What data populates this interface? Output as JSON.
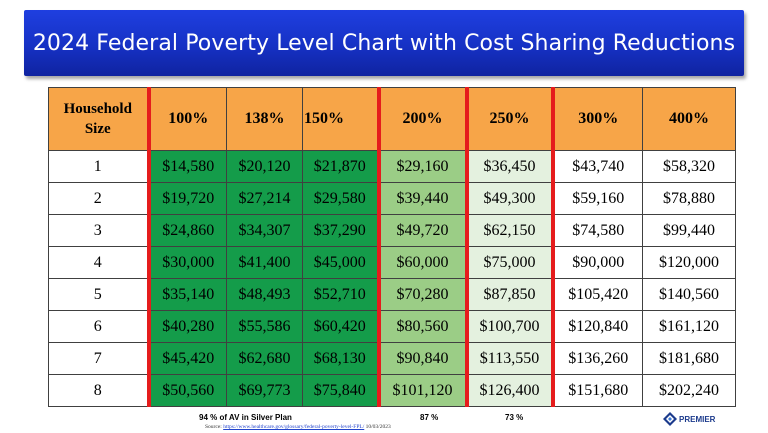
{
  "title": "2024 Federal Poverty Level Chart with Cost Sharing Reductions",
  "table": {
    "headers": [
      "Household Size",
      "100%",
      "138%",
      "150%",
      "200%",
      "250%",
      "300%",
      "400%"
    ],
    "rows": [
      [
        "1",
        "$14,580",
        "$20,120",
        "$21,870",
        "$29,160",
        "$36,450",
        "$43,740",
        "$58,320"
      ],
      [
        "2",
        "$19,720",
        "$27,214",
        "$29,580",
        "$39,440",
        "$49,300",
        "$59,160",
        "$78,880"
      ],
      [
        "3",
        "$24,860",
        "$34,307",
        "$37,290",
        "$49,720",
        "$62,150",
        "$74,580",
        "$99,440"
      ],
      [
        "4",
        "$30,000",
        "$41,400",
        "$45,000",
        "$60,000",
        "$75,000",
        "$90,000",
        "$120,000"
      ],
      [
        "5",
        "$35,140",
        "$48,493",
        "$52,710",
        "$70,280",
        "$87,850",
        "$105,420",
        "$140,560"
      ],
      [
        "6",
        "$40,280",
        "$55,586",
        "$60,420",
        "$80,560",
        "$100,700",
        "$120,840",
        "$161,120"
      ],
      [
        "7",
        "$45,420",
        "$62,680",
        "$68,130",
        "$90,840",
        "$113,550",
        "$136,260",
        "$181,680"
      ],
      [
        "8",
        "$50,560",
        "$69,773",
        "$75,840",
        "$101,120",
        "$126,400",
        "$151,680",
        "$202,240"
      ]
    ]
  },
  "footer": {
    "av_94": "94  % of AV in Silver Plan",
    "av_87": "87 %",
    "av_73": "73 %",
    "source_label": "Source:",
    "source_url": "https://www.healthcare.gov/glossary/federal-poverty-level-FPL/",
    "source_date": "10/03/2023"
  },
  "logo": {
    "name": "PREMIER"
  },
  "colors": {
    "banner": "#1631c4",
    "header": "#f7a548",
    "tier_dark_green": "#149c4a",
    "tier_mid_green": "#9bcd86",
    "tier_light_green": "#e4f1df",
    "divider_red": "#e51c1c"
  }
}
